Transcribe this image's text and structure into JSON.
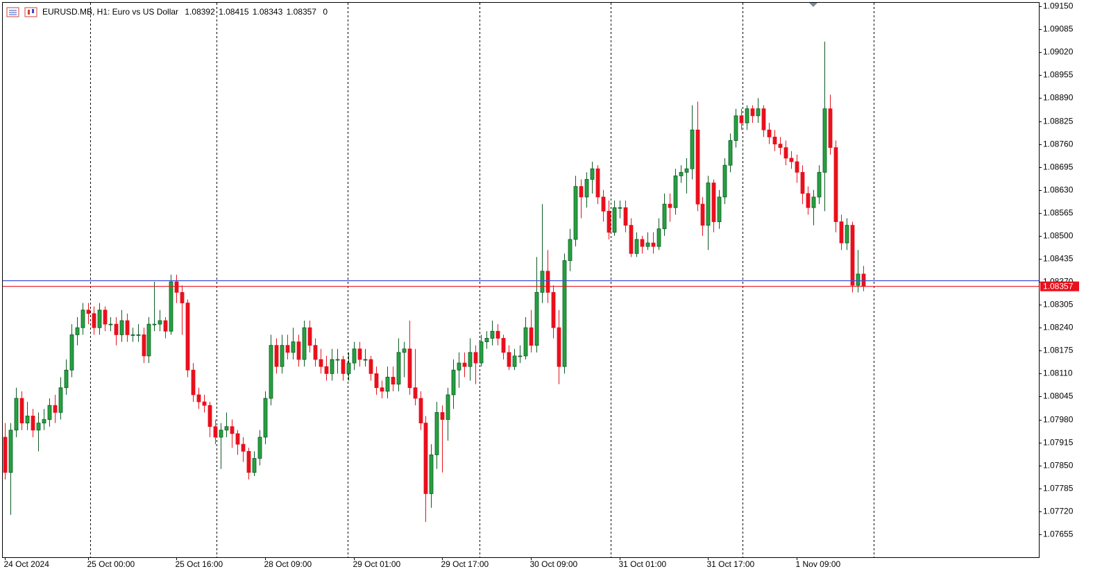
{
  "chart_data": {
    "type": "candlestick",
    "title": "EURUSD.MB, H1:  Euro vs US Dollar",
    "volume": 0,
    "ask": 1.08373,
    "bull_color": "#26a03f",
    "bull_stroke": "#0b5a23",
    "bear_color": "#e8101c",
    "ask_color": "#3c4bdc",
    "bid_color": "#e8101c",
    "ylim": [
      1.0759,
      1.09162
    ],
    "yticks": [
      {
        "value": 1.0915,
        "label": "1.09150"
      },
      {
        "value": 1.09085,
        "label": "1.09085"
      },
      {
        "value": 1.0902,
        "label": "1.09020"
      },
      {
        "value": 1.08955,
        "label": "1.08955"
      },
      {
        "value": 1.0889,
        "label": "1.08890"
      },
      {
        "value": 1.08825,
        "label": "1.08825"
      },
      {
        "value": 1.0876,
        "label": "1.08760"
      },
      {
        "value": 1.08695,
        "label": "1.08695"
      },
      {
        "value": 1.0863,
        "label": "1.08630"
      },
      {
        "value": 1.08565,
        "label": "1.08565"
      },
      {
        "value": 1.085,
        "label": "1.08500"
      },
      {
        "value": 1.08435,
        "label": "1.08435"
      },
      {
        "value": 1.0837,
        "label": "1.08370"
      },
      {
        "value": 1.08305,
        "label": "1.08305"
      },
      {
        "value": 1.0824,
        "label": "1.08240"
      },
      {
        "value": 1.08175,
        "label": "1.08175"
      },
      {
        "value": 1.0811,
        "label": "1.08110"
      },
      {
        "value": 1.08045,
        "label": "1.08045"
      },
      {
        "value": 1.0798,
        "label": "1.07980"
      },
      {
        "value": 1.07915,
        "label": "1.07915"
      },
      {
        "value": 1.0785,
        "label": "1.07850"
      },
      {
        "value": 1.07785,
        "label": "1.07785"
      },
      {
        "value": 1.0772,
        "label": "1.07720"
      },
      {
        "value": 1.07655,
        "label": "1.07655"
      }
    ],
    "xticks": [
      {
        "value": 0,
        "label": "24 Oct 2024"
      },
      {
        "value": 15,
        "label": "25 Oct 00:00"
      },
      {
        "value": 31,
        "label": "25 Oct 16:00"
      },
      {
        "value": 47,
        "label": "28 Oct 09:00"
      },
      {
        "value": 63,
        "label": "29 Oct 01:00"
      },
      {
        "value": 79,
        "label": "29 Oct 17:00"
      },
      {
        "value": 95,
        "label": "30 Oct 09:00"
      },
      {
        "value": 111,
        "label": "31 Oct 01:00"
      },
      {
        "value": 127,
        "label": "31 Oct 17:00"
      },
      {
        "value": 143,
        "label": "1 Nov 09:00"
      }
    ],
    "candles": [
      [
        1.0793,
        1.0797,
        1.0781,
        1.0783
      ],
      [
        1.0783,
        1.0797,
        1.0771,
        1.0795
      ],
      [
        1.0795,
        1.0807,
        1.0793,
        1.0804
      ],
      [
        1.0804,
        1.0806,
        1.0795,
        1.0797
      ],
      [
        1.0797,
        1.0803,
        1.0795,
        1.0799
      ],
      [
        1.0799,
        1.0801,
        1.0793,
        1.0795
      ],
      [
        1.0795,
        1.08,
        1.0789,
        1.0797
      ],
      [
        1.0797,
        1.0801,
        1.0795,
        1.0798
      ],
      [
        1.0798,
        1.0804,
        1.0796,
        1.0802
      ],
      [
        1.0802,
        1.0805,
        1.0797,
        1.08
      ],
      [
        1.08,
        1.081,
        1.0798,
        1.0807
      ],
      [
        1.0807,
        1.0815,
        1.0805,
        1.0812
      ],
      [
        1.0812,
        1.0825,
        1.081,
        1.0822
      ],
      [
        1.0822,
        1.0827,
        1.0819,
        1.0824
      ],
      [
        1.0824,
        1.0831,
        1.0822,
        1.0829
      ],
      [
        1.0829,
        1.0831,
        1.0825,
        1.0828
      ],
      [
        1.0828,
        1.083,
        1.0822,
        1.0824
      ],
      [
        1.0824,
        1.0831,
        1.0822,
        1.0829
      ],
      [
        1.0829,
        1.083,
        1.0823,
        1.0825
      ],
      [
        1.0825,
        1.0827,
        1.0823,
        1.0825
      ],
      [
        1.0825,
        1.0827,
        1.0819,
        1.0822
      ],
      [
        1.0822,
        1.0829,
        1.082,
        1.0826
      ],
      [
        1.0826,
        1.0828,
        1.082,
        1.0822
      ],
      [
        1.0822,
        1.0824,
        1.082,
        1.0822
      ],
      [
        1.0822,
        1.0825,
        1.082,
        1.0822
      ],
      [
        1.0822,
        1.0824,
        1.0814,
        1.0816
      ],
      [
        1.0816,
        1.0827,
        1.0814,
        1.0825
      ],
      [
        1.0825,
        1.0837,
        1.0823,
        1.0825
      ],
      [
        1.0825,
        1.0829,
        1.0823,
        1.0826
      ],
      [
        1.0826,
        1.0827,
        1.0821,
        1.0823
      ],
      [
        1.0823,
        1.0839,
        1.0822,
        1.0837
      ],
      [
        1.0837,
        1.0839,
        1.0831,
        1.0834
      ],
      [
        1.0834,
        1.0836,
        1.0822,
        1.0831
      ],
      [
        1.0831,
        1.0832,
        1.081,
        1.0812
      ],
      [
        1.0812,
        1.0814,
        1.0803,
        1.0805
      ],
      [
        1.0805,
        1.0807,
        1.0801,
        1.0803
      ],
      [
        1.0803,
        1.0805,
        1.08,
        1.0802
      ],
      [
        1.0802,
        1.0803,
        1.0793,
        1.0796
      ],
      [
        1.0796,
        1.0798,
        1.0791,
        1.0793
      ],
      [
        1.0793,
        1.0797,
        1.0784,
        1.0795
      ],
      [
        1.0795,
        1.08,
        1.0793,
        1.0796
      ],
      [
        1.0796,
        1.0798,
        1.079,
        1.0794
      ],
      [
        1.0794,
        1.0795,
        1.0788,
        1.0791
      ],
      [
        1.0791,
        1.0793,
        1.0786,
        1.0789
      ],
      [
        1.0789,
        1.079,
        1.0781,
        1.0783
      ],
      [
        1.0783,
        1.0789,
        1.0782,
        1.0787
      ],
      [
        1.0787,
        1.0795,
        1.0785,
        1.0793
      ],
      [
        1.0793,
        1.0806,
        1.0791,
        1.0804
      ],
      [
        1.0804,
        1.0822,
        1.0802,
        1.0819
      ],
      [
        1.0819,
        1.0821,
        1.0811,
        1.0813
      ],
      [
        1.0813,
        1.0822,
        1.0811,
        1.0819
      ],
      [
        1.0819,
        1.0822,
        1.0815,
        1.0817
      ],
      [
        1.0817,
        1.0824,
        1.0815,
        1.082
      ],
      [
        1.082,
        1.0822,
        1.0813,
        1.0815
      ],
      [
        1.0815,
        1.0826,
        1.0813,
        1.0824
      ],
      [
        1.0824,
        1.0826,
        1.0817,
        1.0819
      ],
      [
        1.0819,
        1.0821,
        1.0813,
        1.0815
      ],
      [
        1.0815,
        1.0818,
        1.0811,
        1.0813
      ],
      [
        1.0813,
        1.0816,
        1.0809,
        1.0811
      ],
      [
        1.0811,
        1.0818,
        1.0809,
        1.0815
      ],
      [
        1.0815,
        1.0818,
        1.0811,
        1.0815
      ],
      [
        1.0815,
        1.0816,
        1.0809,
        1.0811
      ],
      [
        1.0811,
        1.0817,
        1.0809,
        1.0814
      ],
      [
        1.0814,
        1.082,
        1.0812,
        1.0818
      ],
      [
        1.0818,
        1.082,
        1.0813,
        1.0815
      ],
      [
        1.0815,
        1.0818,
        1.0813,
        1.0815
      ],
      [
        1.0815,
        1.0816,
        1.0809,
        1.0811
      ],
      [
        1.0811,
        1.0813,
        1.0805,
        1.0807
      ],
      [
        1.0807,
        1.0809,
        1.0804,
        1.0806
      ],
      [
        1.0806,
        1.0813,
        1.0804,
        1.081
      ],
      [
        1.081,
        1.0813,
        1.0806,
        1.0808
      ],
      [
        1.0808,
        1.0821,
        1.0806,
        1.0817
      ],
      [
        1.0817,
        1.082,
        1.081,
        1.0818
      ],
      [
        1.0818,
        1.0826,
        1.0805,
        1.0807
      ],
      [
        1.0807,
        1.0818,
        1.0802,
        1.0804
      ],
      [
        1.0804,
        1.0806,
        1.0795,
        1.0797
      ],
      [
        1.0797,
        1.0799,
        1.0769,
        1.0777
      ],
      [
        1.0777,
        1.0791,
        1.0773,
        1.0788
      ],
      [
        1.0788,
        1.0803,
        1.0784,
        1.08
      ],
      [
        1.08,
        1.0802,
        1.0783,
        1.0798
      ],
      [
        1.0798,
        1.0807,
        1.0792,
        1.0805
      ],
      [
        1.0805,
        1.0815,
        1.0801,
        1.0812
      ],
      [
        1.0812,
        1.0817,
        1.0807,
        1.0814
      ],
      [
        1.0814,
        1.0817,
        1.081,
        1.0813
      ],
      [
        1.0813,
        1.0821,
        1.0809,
        1.0817
      ],
      [
        1.0817,
        1.0819,
        1.0808,
        1.0814
      ],
      [
        1.0814,
        1.0822,
        1.0813,
        1.082
      ],
      [
        1.082,
        1.0823,
        1.0818,
        1.0821
      ],
      [
        1.0821,
        1.0826,
        1.0819,
        1.0823
      ],
      [
        1.0823,
        1.0825,
        1.0819,
        1.0821
      ],
      [
        1.0821,
        1.0822,
        1.0815,
        1.0817
      ],
      [
        1.0817,
        1.0819,
        1.0812,
        1.0813
      ],
      [
        1.0813,
        1.0818,
        1.0812,
        1.0816
      ],
      [
        1.0816,
        1.0819,
        1.0814,
        1.0816
      ],
      [
        1.0816,
        1.0827,
        1.0815,
        1.0824
      ],
      [
        1.0824,
        1.0829,
        1.0817,
        1.0819
      ],
      [
        1.0819,
        1.0844,
        1.0817,
        1.0834
      ],
      [
        1.0834,
        1.0859,
        1.0831,
        1.084
      ],
      [
        1.084,
        1.0846,
        1.0831,
        1.0834
      ],
      [
        1.0834,
        1.0836,
        1.0821,
        1.0824
      ],
      [
        1.0824,
        1.0829,
        1.0808,
        1.0813
      ],
      [
        1.0813,
        1.0845,
        1.0811,
        1.0843
      ],
      [
        1.0843,
        1.0852,
        1.084,
        1.0849
      ],
      [
        1.0849,
        1.0867,
        1.0847,
        1.0864
      ],
      [
        1.0864,
        1.0866,
        1.0855,
        1.0861
      ],
      [
        1.0861,
        1.0868,
        1.0858,
        1.0866
      ],
      [
        1.0866,
        1.0871,
        1.0862,
        1.0869
      ],
      [
        1.0869,
        1.087,
        1.0859,
        1.0861
      ],
      [
        1.0861,
        1.0863,
        1.0854,
        1.0857
      ],
      [
        1.0857,
        1.086,
        1.0849,
        1.0851
      ],
      [
        1.0851,
        1.086,
        1.085,
        1.0858
      ],
      [
        1.0858,
        1.086,
        1.0855,
        1.0858
      ],
      [
        1.0858,
        1.086,
        1.0851,
        1.0853
      ],
      [
        1.0853,
        1.0855,
        1.0844,
        1.0845
      ],
      [
        1.0845,
        1.0851,
        1.0844,
        1.0849
      ],
      [
        1.0849,
        1.085,
        1.0845,
        1.0847
      ],
      [
        1.0847,
        1.0851,
        1.0846,
        1.0848
      ],
      [
        1.0848,
        1.0851,
        1.0845,
        1.0847
      ],
      [
        1.0847,
        1.0855,
        1.0846,
        1.0852
      ],
      [
        1.0852,
        1.0862,
        1.085,
        1.0859
      ],
      [
        1.0859,
        1.0862,
        1.0854,
        1.0858
      ],
      [
        1.0858,
        1.0869,
        1.0856,
        1.0867
      ],
      [
        1.0867,
        1.087,
        1.0865,
        1.0868
      ],
      [
        1.0868,
        1.0872,
        1.0862,
        1.0869
      ],
      [
        1.0869,
        1.0887,
        1.0866,
        1.088
      ],
      [
        1.088,
        1.0888,
        1.0857,
        1.0859
      ],
      [
        1.0859,
        1.0861,
        1.085,
        1.0853
      ],
      [
        1.0853,
        1.0867,
        1.0846,
        1.0865
      ],
      [
        1.0865,
        1.0866,
        1.0851,
        1.0854
      ],
      [
        1.0854,
        1.0863,
        1.0852,
        1.0861
      ],
      [
        1.0861,
        1.0872,
        1.0859,
        1.087
      ],
      [
        1.087,
        1.0879,
        1.0868,
        1.0877
      ],
      [
        1.0877,
        1.0886,
        1.0875,
        1.0884
      ],
      [
        1.0884,
        1.0886,
        1.088,
        1.0882
      ],
      [
        1.0882,
        1.0887,
        1.088,
        1.0886
      ],
      [
        1.0886,
        1.0887,
        1.0882,
        1.0884
      ],
      [
        1.0884,
        1.0889,
        1.0882,
        1.0886
      ],
      [
        1.0886,
        1.0887,
        1.0878,
        1.088
      ],
      [
        1.088,
        1.0882,
        1.0876,
        1.0878
      ],
      [
        1.0878,
        1.088,
        1.0874,
        1.0876
      ],
      [
        1.0876,
        1.0878,
        1.0873,
        1.0875
      ],
      [
        1.0875,
        1.0877,
        1.087,
        1.0872
      ],
      [
        1.0872,
        1.0874,
        1.0869,
        1.0871
      ],
      [
        1.0871,
        1.0873,
        1.0865,
        1.0868
      ],
      [
        1.0868,
        1.087,
        1.0859,
        1.0862
      ],
      [
        1.0862,
        1.0864,
        1.0856,
        1.0858
      ],
      [
        1.0858,
        1.0863,
        1.0853,
        1.0861
      ],
      [
        1.0861,
        1.087,
        1.0859,
        1.0868
      ],
      [
        1.0868,
        1.0905,
        1.0857,
        1.0886
      ],
      [
        1.0886,
        1.089,
        1.0873,
        1.0875
      ],
      [
        1.0875,
        1.0877,
        1.0851,
        1.0854
      ],
      [
        1.0854,
        1.0856,
        1.0846,
        1.0848
      ],
      [
        1.0848,
        1.0855,
        1.0846,
        1.0853
      ],
      [
        1.0853,
        1.0854,
        1.0834,
        1.0836
      ],
      [
        1.0836,
        1.0846,
        1.0834,
        1.08392
      ],
      [
        1.08392,
        1.08415,
        1.08343,
        1.08357
      ]
    ]
  }
}
